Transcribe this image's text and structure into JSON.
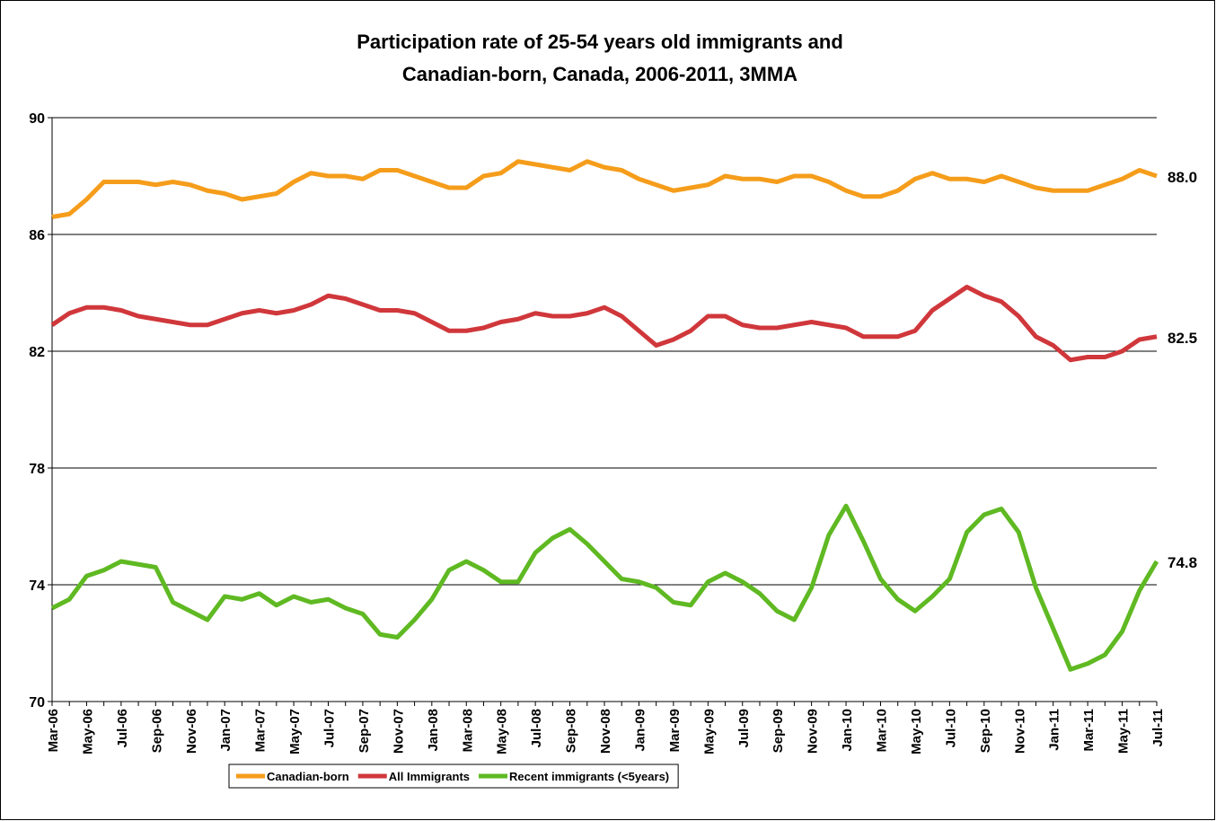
{
  "chart_data": {
    "type": "line",
    "title": [
      "Participation rate of 25-54 years old immigrants and",
      "Canadian-born, Canada, 2006-2011, 3MMA"
    ],
    "categories": [
      "Mar-06",
      null,
      "May-06",
      null,
      "Jul-06",
      null,
      "Sep-06",
      null,
      "Nov-06",
      null,
      "Jan-07",
      null,
      "Mar-07",
      null,
      "May-07",
      null,
      "Jul-07",
      null,
      "Sep-07",
      null,
      "Nov-07",
      null,
      "Jan-08",
      null,
      "Mar-08",
      null,
      "May-08",
      null,
      "Jul-08",
      null,
      "Sep-08",
      null,
      "Nov-08",
      null,
      "Jan-09",
      null,
      "Mar-09",
      null,
      "May-09",
      null,
      "Jul-09",
      null,
      "Sep-09",
      null,
      "Nov-09",
      null,
      "Jan-10",
      null,
      "Mar-10",
      null,
      "May-10",
      null,
      "Jul-10",
      null,
      "Sep-10",
      null,
      "Nov-10",
      null,
      "Jan-11",
      null,
      "Mar-11",
      null,
      "May-11",
      null,
      "Jul-11"
    ],
    "series": [
      {
        "name": "Canadian-born",
        "color": "#f59d1b",
        "values": [
          86.6,
          86.7,
          87.2,
          87.8,
          87.8,
          87.8,
          87.7,
          87.8,
          87.7,
          87.5,
          87.4,
          87.2,
          87.3,
          87.4,
          87.8,
          88.1,
          88.0,
          88.0,
          87.9,
          88.2,
          88.2,
          88.0,
          87.8,
          87.6,
          87.6,
          88.0,
          88.1,
          88.5,
          88.4,
          88.3,
          88.2,
          88.5,
          88.3,
          88.2,
          87.9,
          87.7,
          87.5,
          87.6,
          87.7,
          88.0,
          87.9,
          87.9,
          87.8,
          88.0,
          88.0,
          87.8,
          87.5,
          87.3,
          87.3,
          87.5,
          87.9,
          88.1,
          87.9,
          87.9,
          87.8,
          88.0,
          87.8,
          87.6,
          87.5,
          87.5,
          87.5,
          87.7,
          87.9,
          88.2,
          88.0
        ],
        "value_labels": [
          null,
          null,
          null,
          null,
          null,
          null,
          null,
          null,
          null,
          null,
          null,
          null,
          null,
          null,
          null,
          null,
          null,
          null,
          null,
          null,
          null,
          null,
          null,
          null,
          null,
          null,
          null,
          null,
          null,
          null,
          null,
          null,
          null,
          null,
          null,
          null,
          null,
          null,
          null,
          null,
          null,
          null,
          null,
          null,
          null,
          null,
          null,
          null,
          null,
          null,
          null,
          null,
          null,
          null,
          null,
          null,
          null,
          null,
          null,
          null,
          null,
          null,
          null,
          null,
          "88.0"
        ]
      },
      {
        "name": "All Immigrants",
        "color": "#d0373b",
        "values": [
          82.9,
          83.3,
          83.5,
          83.5,
          83.4,
          83.2,
          83.1,
          83.0,
          82.9,
          82.9,
          83.1,
          83.3,
          83.4,
          83.3,
          83.4,
          83.6,
          83.9,
          83.8,
          83.6,
          83.4,
          83.4,
          83.3,
          83.0,
          82.7,
          82.7,
          82.8,
          83.0,
          83.1,
          83.3,
          83.2,
          83.2,
          83.3,
          83.5,
          83.2,
          82.7,
          82.2,
          82.4,
          82.7,
          83.2,
          83.2,
          82.9,
          82.8,
          82.8,
          82.9,
          83.0,
          82.9,
          82.8,
          82.5,
          82.5,
          82.5,
          82.7,
          83.4,
          83.8,
          84.2,
          83.9,
          83.7,
          83.2,
          82.5,
          82.2,
          81.7,
          81.8,
          81.8,
          82.0,
          82.4,
          82.5
        ],
        "value_labels": [
          null,
          null,
          null,
          null,
          null,
          null,
          null,
          null,
          null,
          null,
          null,
          null,
          null,
          null,
          null,
          null,
          null,
          null,
          null,
          null,
          null,
          null,
          null,
          null,
          null,
          null,
          null,
          null,
          null,
          null,
          null,
          null,
          null,
          null,
          null,
          null,
          null,
          null,
          null,
          null,
          null,
          null,
          null,
          null,
          null,
          null,
          null,
          null,
          null,
          null,
          null,
          null,
          null,
          null,
          null,
          null,
          null,
          null,
          null,
          null,
          null,
          null,
          null,
          null,
          "82.5"
        ]
      },
      {
        "name": "Recent immigrants (<5years)",
        "color": "#5fb922",
        "values": [
          73.2,
          73.5,
          74.3,
          74.5,
          74.8,
          74.7,
          74.6,
          73.4,
          73.1,
          72.8,
          73.6,
          73.5,
          73.7,
          73.3,
          73.6,
          73.4,
          73.5,
          73.2,
          73.0,
          72.3,
          72.2,
          72.8,
          73.5,
          74.5,
          74.8,
          74.5,
          74.1,
          74.1,
          75.1,
          75.6,
          75.9,
          75.4,
          74.8,
          74.2,
          74.1,
          73.9,
          73.4,
          73.3,
          74.1,
          74.4,
          74.1,
          73.7,
          73.1,
          72.8,
          73.9,
          75.7,
          76.7,
          75.5,
          74.2,
          73.5,
          73.1,
          73.6,
          74.2,
          75.8,
          76.4,
          76.6,
          75.8,
          73.9,
          72.5,
          71.1,
          71.3,
          71.6,
          72.4,
          73.8,
          74.8
        ],
        "value_labels": [
          null,
          null,
          null,
          null,
          null,
          null,
          null,
          null,
          null,
          null,
          null,
          null,
          null,
          null,
          null,
          null,
          null,
          null,
          null,
          null,
          null,
          null,
          null,
          null,
          null,
          null,
          null,
          null,
          null,
          null,
          null,
          null,
          null,
          null,
          null,
          null,
          null,
          null,
          null,
          null,
          null,
          null,
          null,
          null,
          null,
          null,
          null,
          null,
          null,
          null,
          null,
          null,
          null,
          null,
          null,
          null,
          null,
          null,
          null,
          null,
          null,
          null,
          null,
          null,
          "74.8"
        ]
      }
    ],
    "ylim": [
      70,
      90
    ],
    "yticks": [
      70,
      74,
      78,
      82,
      86,
      90
    ],
    "grid": true,
    "legend": "bottom"
  }
}
